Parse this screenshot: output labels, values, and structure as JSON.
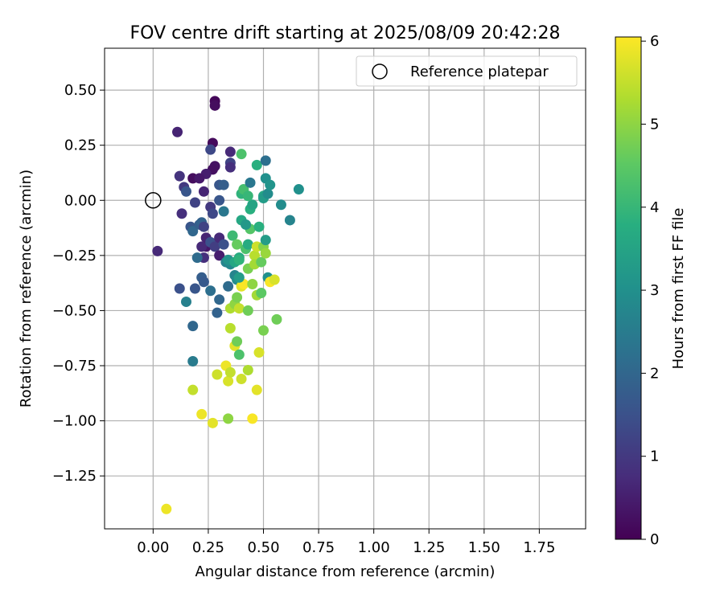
{
  "chart_data": {
    "type": "scatter",
    "title": "FOV centre drift starting at 2025/08/09 20:42:28",
    "xlabel": "Angular distance from reference (arcmin)",
    "ylabel": "Rotation from reference (arcmin)",
    "xlim": [
      -0.22,
      1.96
    ],
    "ylim": [
      -1.49,
      0.69
    ],
    "xticks": [
      "0.00",
      "0.25",
      "0.50",
      "0.75",
      "1.00",
      "1.25",
      "1.50",
      "1.75"
    ],
    "xtick_values": [
      0,
      0.25,
      0.5,
      0.75,
      1.0,
      1.25,
      1.5,
      1.75
    ],
    "yticks": [
      "0.50",
      "0.25",
      "0.00",
      "−0.25",
      "−0.50",
      "−0.75",
      "−1.00",
      "−1.25"
    ],
    "ytick_values": [
      0.5,
      0.25,
      0.0,
      -0.25,
      -0.5,
      -0.75,
      -1.0,
      -1.25
    ],
    "grid": true,
    "legend": {
      "placement": "upper right",
      "entries": [
        "Reference platepar"
      ]
    },
    "reference_point": {
      "x": 0.0,
      "y": 0.0
    },
    "colorbar": {
      "label": "Hours from first FF file",
      "range": [
        0,
        6.05
      ],
      "ticks": [
        "0",
        "1",
        "2",
        "3",
        "4",
        "5",
        "6"
      ],
      "tick_values": [
        0,
        1,
        2,
        3,
        4,
        5,
        6
      ],
      "colormap": "viridis"
    },
    "series": [
      {
        "points": [
          {
            "x": 0.28,
            "y": 0.45,
            "h": 0.1
          },
          {
            "x": 0.28,
            "y": 0.43,
            "h": 0.2
          },
          {
            "x": 0.27,
            "y": 0.26,
            "h": 0.15
          },
          {
            "x": 0.11,
            "y": 0.31,
            "h": 0.6
          },
          {
            "x": 0.26,
            "y": 0.23,
            "h": 1.3
          },
          {
            "x": 0.35,
            "y": 0.22,
            "h": 0.7
          },
          {
            "x": 0.35,
            "y": 0.17,
            "h": 1.2
          },
          {
            "x": 0.35,
            "y": 0.15,
            "h": 0.8
          },
          {
            "x": 0.28,
            "y": 0.155,
            "h": 0.3
          },
          {
            "x": 0.27,
            "y": 0.14,
            "h": 0.25
          },
          {
            "x": 0.24,
            "y": 0.12,
            "h": 0.5
          },
          {
            "x": 0.18,
            "y": 0.1,
            "h": 0.2
          },
          {
            "x": 0.21,
            "y": 0.1,
            "h": 0.4
          },
          {
            "x": 0.12,
            "y": 0.11,
            "h": 0.9
          },
          {
            "x": 0.14,
            "y": 0.06,
            "h": 1.0
          },
          {
            "x": 0.15,
            "y": 0.04,
            "h": 1.6
          },
          {
            "x": 0.23,
            "y": 0.04,
            "h": 0.6
          },
          {
            "x": 0.3,
            "y": 0.07,
            "h": 1.6
          },
          {
            "x": 0.32,
            "y": 0.07,
            "h": 1.8
          },
          {
            "x": 0.19,
            "y": -0.01,
            "h": 1.2
          },
          {
            "x": 0.3,
            "y": 0.0,
            "h": 1.6
          },
          {
            "x": 0.26,
            "y": -0.03,
            "h": 1.0
          },
          {
            "x": 0.27,
            "y": -0.06,
            "h": 1.3
          },
          {
            "x": 0.13,
            "y": -0.06,
            "h": 0.8
          },
          {
            "x": 0.32,
            "y": -0.05,
            "h": 2.4
          },
          {
            "x": 0.02,
            "y": -0.23,
            "h": 0.7
          },
          {
            "x": 0.17,
            "y": -0.12,
            "h": 1.6
          },
          {
            "x": 0.18,
            "y": -0.14,
            "h": 2.0
          },
          {
            "x": 0.21,
            "y": -0.11,
            "h": 1.8
          },
          {
            "x": 0.22,
            "y": -0.1,
            "h": 1.9
          },
          {
            "x": 0.23,
            "y": -0.12,
            "h": 1.2
          },
          {
            "x": 0.24,
            "y": -0.17,
            "h": 0.6
          },
          {
            "x": 0.24,
            "y": -0.21,
            "h": 0.4
          },
          {
            "x": 0.22,
            "y": -0.21,
            "h": 0.7
          },
          {
            "x": 0.23,
            "y": -0.26,
            "h": 0.8
          },
          {
            "x": 0.2,
            "y": -0.26,
            "h": 2.1
          },
          {
            "x": 0.26,
            "y": -0.19,
            "h": 1.5
          },
          {
            "x": 0.28,
            "y": -0.21,
            "h": 1.1
          },
          {
            "x": 0.3,
            "y": -0.17,
            "h": 0.7
          },
          {
            "x": 0.3,
            "y": -0.25,
            "h": 0.5
          },
          {
            "x": 0.32,
            "y": -0.2,
            "h": 1.5
          },
          {
            "x": 0.33,
            "y": -0.28,
            "h": 2.7
          },
          {
            "x": 0.35,
            "y": -0.29,
            "h": 2.8
          },
          {
            "x": 0.34,
            "y": -0.27,
            "h": 3.1
          },
          {
            "x": 0.37,
            "y": -0.28,
            "h": 3.6
          },
          {
            "x": 0.39,
            "y": -0.26,
            "h": 3.7
          },
          {
            "x": 0.37,
            "y": -0.34,
            "h": 2.7
          },
          {
            "x": 0.38,
            "y": -0.36,
            "h": 2.9
          },
          {
            "x": 0.12,
            "y": -0.4,
            "h": 1.5
          },
          {
            "x": 0.19,
            "y": -0.4,
            "h": 1.6
          },
          {
            "x": 0.22,
            "y": -0.35,
            "h": 1.8
          },
          {
            "x": 0.23,
            "y": -0.37,
            "h": 1.7
          },
          {
            "x": 0.26,
            "y": -0.41,
            "h": 2.2
          },
          {
            "x": 0.15,
            "y": -0.46,
            "h": 2.6
          },
          {
            "x": 0.3,
            "y": -0.45,
            "h": 2.0
          },
          {
            "x": 0.34,
            "y": -0.39,
            "h": 2.1
          },
          {
            "x": 0.29,
            "y": -0.51,
            "h": 1.9
          },
          {
            "x": 0.18,
            "y": -0.57,
            "h": 2.0
          },
          {
            "x": 0.18,
            "y": -0.73,
            "h": 2.5
          },
          {
            "x": 0.06,
            "y": -1.4,
            "h": 5.9
          },
          {
            "x": 0.18,
            "y": -0.86,
            "h": 5.5
          },
          {
            "x": 0.22,
            "y": -0.97,
            "h": 5.9
          },
          {
            "x": 0.27,
            "y": -1.01,
            "h": 5.8
          },
          {
            "x": 0.29,
            "y": -0.79,
            "h": 5.6
          },
          {
            "x": 0.33,
            "y": -0.75,
            "h": 5.9
          },
          {
            "x": 0.34,
            "y": -0.82,
            "h": 5.7
          },
          {
            "x": 0.35,
            "y": -0.78,
            "h": 5.5
          },
          {
            "x": 0.37,
            "y": -0.66,
            "h": 5.8
          },
          {
            "x": 0.35,
            "y": -0.58,
            "h": 5.4
          },
          {
            "x": 0.38,
            "y": -0.64,
            "h": 4.7
          },
          {
            "x": 0.39,
            "y": -0.7,
            "h": 4.3
          },
          {
            "x": 0.4,
            "y": -0.81,
            "h": 5.6
          },
          {
            "x": 0.43,
            "y": -0.77,
            "h": 5.3
          },
          {
            "x": 0.34,
            "y": -0.99,
            "h": 5.0
          },
          {
            "x": 0.45,
            "y": -0.99,
            "h": 6.0
          },
          {
            "x": 0.47,
            "y": -0.86,
            "h": 5.8
          },
          {
            "x": 0.48,
            "y": -0.69,
            "h": 5.7
          },
          {
            "x": 0.5,
            "y": -0.59,
            "h": 4.8
          },
          {
            "x": 0.35,
            "y": -0.49,
            "h": 5.3
          },
          {
            "x": 0.37,
            "y": -0.47,
            "h": 5.0
          },
          {
            "x": 0.38,
            "y": -0.44,
            "h": 4.8
          },
          {
            "x": 0.39,
            "y": -0.49,
            "h": 5.5
          },
          {
            "x": 0.4,
            "y": -0.39,
            "h": 5.8
          },
          {
            "x": 0.41,
            "y": -0.38,
            "h": 6.0
          },
          {
            "x": 0.43,
            "y": -0.5,
            "h": 4.7
          },
          {
            "x": 0.45,
            "y": -0.38,
            "h": 5.0
          },
          {
            "x": 0.47,
            "y": -0.43,
            "h": 5.2
          },
          {
            "x": 0.49,
            "y": -0.42,
            "h": 4.5
          },
          {
            "x": 0.36,
            "y": -0.16,
            "h": 4.1
          },
          {
            "x": 0.38,
            "y": -0.2,
            "h": 4.6
          },
          {
            "x": 0.39,
            "y": -0.27,
            "h": 3.9
          },
          {
            "x": 0.42,
            "y": -0.22,
            "h": 4.3
          },
          {
            "x": 0.43,
            "y": -0.31,
            "h": 4.8
          },
          {
            "x": 0.43,
            "y": -0.2,
            "h": 3.7
          },
          {
            "x": 0.44,
            "y": -0.13,
            "h": 4.4
          },
          {
            "x": 0.46,
            "y": -0.25,
            "h": 5.4
          },
          {
            "x": 0.46,
            "y": -0.29,
            "h": 5.2
          },
          {
            "x": 0.47,
            "y": -0.21,
            "h": 5.6
          },
          {
            "x": 0.48,
            "y": -0.12,
            "h": 3.8
          },
          {
            "x": 0.49,
            "y": -0.28,
            "h": 4.6
          },
          {
            "x": 0.5,
            "y": -0.21,
            "h": 4.9
          },
          {
            "x": 0.51,
            "y": -0.24,
            "h": 5.1
          },
          {
            "x": 0.51,
            "y": -0.18,
            "h": 3.3
          },
          {
            "x": 0.52,
            "y": -0.35,
            "h": 3.0
          },
          {
            "x": 0.53,
            "y": -0.37,
            "h": 6.0
          },
          {
            "x": 0.55,
            "y": -0.36,
            "h": 5.7
          },
          {
            "x": 0.56,
            "y": -0.54,
            "h": 4.7
          },
          {
            "x": 0.4,
            "y": -0.09,
            "h": 3.6
          },
          {
            "x": 0.42,
            "y": -0.11,
            "h": 3.2
          },
          {
            "x": 0.44,
            "y": -0.04,
            "h": 3.8
          },
          {
            "x": 0.45,
            "y": -0.02,
            "h": 3.5
          },
          {
            "x": 0.4,
            "y": 0.03,
            "h": 3.9
          },
          {
            "x": 0.41,
            "y": 0.05,
            "h": 4.2
          },
          {
            "x": 0.43,
            "y": 0.02,
            "h": 4.0
          },
          {
            "x": 0.44,
            "y": 0.08,
            "h": 2.4
          },
          {
            "x": 0.47,
            "y": 0.16,
            "h": 3.8
          },
          {
            "x": 0.5,
            "y": 0.02,
            "h": 3.6
          },
          {
            "x": 0.5,
            "y": 0.01,
            "h": 3.3
          },
          {
            "x": 0.51,
            "y": 0.1,
            "h": 3.0
          },
          {
            "x": 0.51,
            "y": 0.18,
            "h": 2.2
          },
          {
            "x": 0.52,
            "y": 0.03,
            "h": 2.9
          },
          {
            "x": 0.53,
            "y": 0.07,
            "h": 3.1
          },
          {
            "x": 0.58,
            "y": -0.02,
            "h": 2.9
          },
          {
            "x": 0.62,
            "y": -0.09,
            "h": 2.7
          },
          {
            "x": 0.66,
            "y": 0.05,
            "h": 3.0
          },
          {
            "x": 0.4,
            "y": 0.21,
            "h": 4.3
          },
          {
            "x": 0.39,
            "y": -0.35,
            "h": 3.3
          }
        ]
      }
    ]
  }
}
